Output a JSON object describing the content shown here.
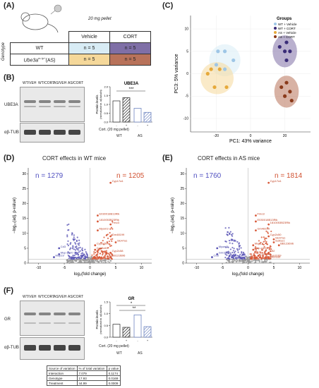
{
  "panelA": {
    "label": "(A)",
    "pellet": "20 mg pellet",
    "genotype_axis": "Genotype",
    "col_headers": [
      "Vehicle",
      "CORT"
    ],
    "rows": [
      {
        "genotype": "WT",
        "cells": [
          "n = 5",
          "n = 5"
        ]
      },
      {
        "genotype": "Ube3a",
        "sup": "m-/p+",
        "suffix": "(AS)",
        "cells": [
          "n = 5",
          "n = 5"
        ]
      }
    ],
    "colors": {
      "wt_vehicle": "#d8ecf5",
      "wt_cort": "#7f6fa6",
      "as_vehicle": "#f5d89a",
      "as_cort": "#b8725a"
    }
  },
  "panelB": {
    "label": "(B)",
    "lanes": [
      "WT/VEH",
      "WT/CORT",
      "AS/VEH",
      "AS/CORT"
    ],
    "blot_labels": [
      "UBE3A",
      "αβ-TUB"
    ],
    "mw": [
      "250",
      "150",
      "100",
      "75",
      "50",
      "37",
      "25",
      "250",
      "150",
      "100",
      "75",
      "50",
      "37",
      "25",
      "50",
      "37"
    ],
    "chart_data": {
      "type": "bar",
      "title": "UBE3A",
      "ylabel": "Protein levels",
      "ylabel2": "(normalized vs. αβ-tubulin)",
      "yticks": [
        "0.0",
        "0.5",
        "1.0",
        "1.5",
        "2.0"
      ],
      "ylim": [
        0,
        2
      ],
      "categories": [
        "WT −",
        "WT +",
        "AS −",
        "AS +"
      ],
      "values": [
        1.2,
        1.38,
        0.78,
        0.55
      ],
      "xrow_label": "Cort. (20 mg pellet)",
      "treatment": [
        "-",
        "+",
        "-",
        "+"
      ],
      "groups": [
        "WT",
        "AS"
      ],
      "significance": [
        "***"
      ]
    }
  },
  "panelC": {
    "label": "(C)",
    "legend_title": "Groups",
    "legend": [
      "WT + Vehicle",
      "WT + CORT",
      "AS + Vehicle",
      "AS + CORT"
    ],
    "chart_data": {
      "type": "scatter",
      "xlabel": "PC1: 43% variance",
      "ylabel": "PC3: 5% variance",
      "xticks": [
        "-20",
        "0",
        "20"
      ],
      "yticks": [
        "-10",
        "-5",
        "0",
        "5",
        "10"
      ],
      "xlim": [
        -35,
        35
      ],
      "ylim": [
        -13,
        13
      ],
      "series": [
        {
          "name": "WT + Vehicle",
          "points": [
            [
              -19,
              5
            ],
            [
              -15,
              5
            ],
            [
              -10,
              3
            ],
            [
              -20,
              2
            ],
            [
              -15,
              1
            ]
          ]
        },
        {
          "name": "WT + CORT",
          "points": [
            [
              17,
              6
            ],
            [
              21,
              7
            ],
            [
              20,
              5
            ],
            [
              23,
              5
            ],
            [
              21,
              3
            ]
          ]
        },
        {
          "name": "AS + Vehicle",
          "points": [
            [
              -23,
              1
            ],
            [
              -18,
              1
            ],
            [
              -21,
              -3
            ],
            [
              -14,
              -3
            ],
            [
              -25,
              0
            ]
          ]
        },
        {
          "name": "AS + CORT",
          "points": [
            [
              18,
              -3
            ],
            [
              23,
              -4
            ],
            [
              20,
              -5
            ],
            [
              24,
              -6
            ],
            [
              21,
              -2
            ]
          ]
        }
      ]
    }
  },
  "panelD": {
    "label": "(D)",
    "title": "CORT effects in WT mice",
    "n_down": "n = 1279",
    "n_up": "n = 1205",
    "xlabel": "log₂(fold change)",
    "ylabel": "−log₁₀(adj. p-value)",
    "xticks": [
      "-10",
      "-5",
      "0",
      "5",
      "10"
    ],
    "yticks": [
      "0",
      "5",
      "10",
      "15",
      "20",
      "25",
      "30"
    ],
    "genes": [
      "Cyp17a1",
      "E030018B13Rik",
      "1810053B23Rik",
      "Fmo3",
      "Myom3",
      "Cd3",
      "Mup-ps20",
      "Mup19",
      "Cyp2c50",
      "Cyp2c69",
      "Cyp2c58",
      "Slc47a1",
      "BB123696",
      "Gm48199"
    ]
  },
  "panelE": {
    "label": "(E)",
    "title": "CORT effects in AS mice",
    "n_down": "n = 1760",
    "n_up": "n = 1814",
    "xlabel": "log₂(fold change)",
    "ylabel": "−log₁₀(adj. p-value)",
    "xticks": [
      "-10",
      "-5",
      "0",
      "5",
      "10"
    ],
    "yticks": [
      "0",
      "5",
      "10",
      "15",
      "20",
      "25",
      "30"
    ],
    "genes": [
      "Cyp17a1",
      "Fmo3",
      "E030018B13Rik",
      "1810053B23Rik",
      "Gm48199",
      "Myom3",
      "Gm15698",
      "Cd3",
      "Mup19",
      "Mup-pa20",
      "Mt2",
      "Sult1e1",
      "Cyp2c69",
      "Cyp2c50",
      "Slc47a1",
      "BB123696",
      "Cyp2c40",
      "Slco1a5"
    ]
  },
  "panelF": {
    "label": "(F)",
    "lanes": [
      "WT/VEH",
      "WT/CORT",
      "AS/VEH",
      "AS/CORT"
    ],
    "blot_labels": [
      "GR",
      "αβ-TUB"
    ],
    "mw": [
      "150",
      "100",
      "75",
      "50",
      "37",
      "50",
      "37"
    ],
    "chart_data": {
      "type": "bar",
      "title": "GR",
      "ylabel": "Protein levels",
      "ylabel2": "(normalized vs. αβ-tubulin)",
      "yticks": [
        "0.0",
        "0.5",
        "1.0",
        "1.5"
      ],
      "ylim": [
        0,
        1.5
      ],
      "categories": [
        "WT −",
        "WT +",
        "AS −",
        "AS +"
      ],
      "values": [
        0.55,
        0.42,
        0.95,
        0.45
      ],
      "xrow_label": "Cort. (20 mg pellet)",
      "treatment": [
        "-",
        "+",
        "-",
        "+"
      ],
      "groups": [
        "WT",
        "AS"
      ],
      "significance": [
        "*",
        "**"
      ]
    },
    "stats_table": {
      "headers": [
        "Source of variation",
        "% of total variation",
        "p value"
      ],
      "rows": [
        [
          "Interaction",
          "7.079",
          "0.1174"
        ],
        [
          "Genotype",
          "17.93",
          "0.0169"
        ],
        [
          "Treatment",
          "44.99",
          "0.0009"
        ]
      ]
    }
  }
}
